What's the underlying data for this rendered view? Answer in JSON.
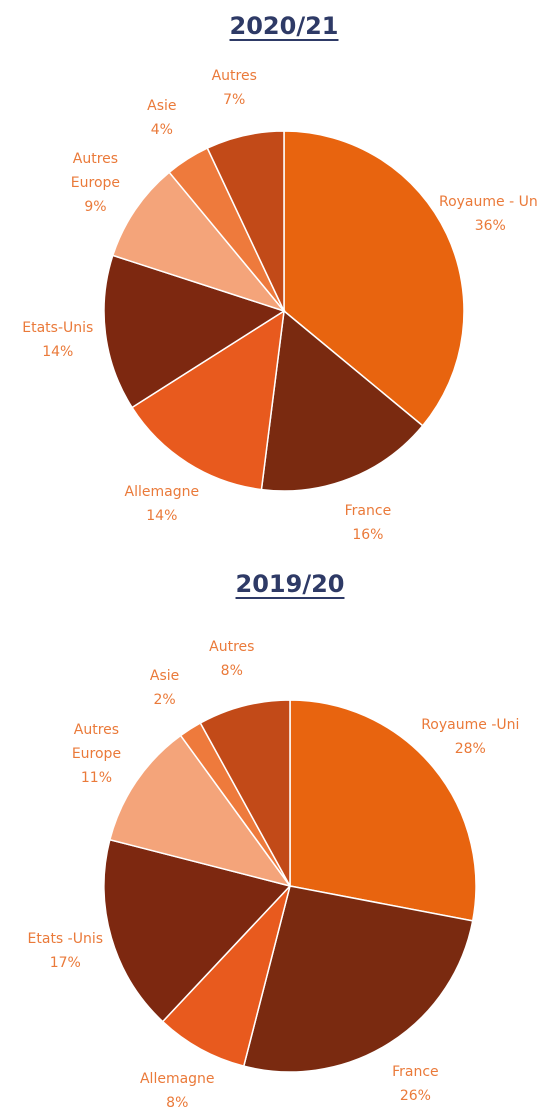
{
  "chart_data": [
    {
      "type": "pie",
      "title": "2020/21",
      "categories": [
        "Royaume - Uni",
        "France",
        "Allemagne",
        "Etats-Unis",
        "Autres Europe",
        "Asie",
        "Autres"
      ],
      "values": [
        36,
        16,
        14,
        14,
        9,
        4,
        7
      ],
      "value_labels": [
        "36%",
        "16%",
        "14%",
        "14%",
        "9%",
        "4%",
        "7%"
      ],
      "colors": [
        "#e8640f",
        "#7a2a10",
        "#e85a1e",
        "#7d2810",
        "#f4a47a",
        "#ee7a3c",
        "#c24a18"
      ]
    },
    {
      "type": "pie",
      "title": "2019/20",
      "categories": [
        "Royaume -Uni",
        "France",
        "Allemagne",
        "Etats -Unis",
        "Autres Europe",
        "Asie",
        "Autres"
      ],
      "values": [
        28,
        26,
        8,
        17,
        11,
        2,
        8
      ],
      "value_labels": [
        "28%",
        "26%",
        "8%",
        "17%",
        "11%",
        "2%",
        "8%"
      ],
      "colors": [
        "#e8640f",
        "#7a2a10",
        "#e85a1e",
        "#7d2810",
        "#f4a47a",
        "#ee7a3c",
        "#c24a18"
      ]
    }
  ]
}
